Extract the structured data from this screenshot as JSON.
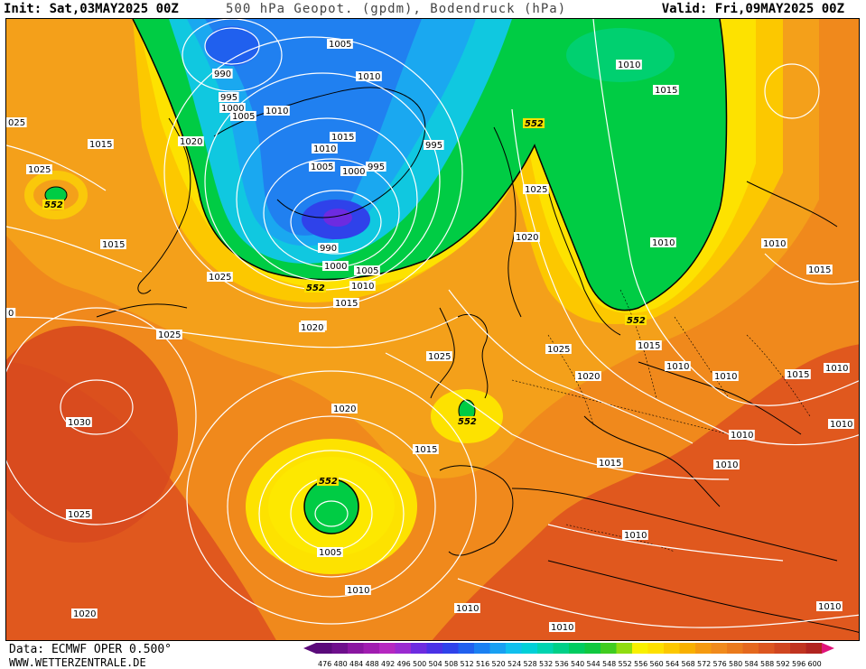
{
  "header": {
    "init": "Init: Sat,03MAY2025 00Z",
    "title": "500 hPa Geopot. (gpdm), Bodendruck (hPa)",
    "valid": "Valid: Fri,09MAY2025 00Z"
  },
  "footer": {
    "data_source": "Data: ECMWF OPER 0.500°",
    "site": "WWW.WETTERZENTRALE.DE"
  },
  "colors": {
    "background_low": "#d8451f",
    "orange": "#f08a1c",
    "yellow": "#fde500",
    "green": "#00cc44",
    "cyan": "#00c8e8",
    "blue": "#2080f0",
    "deep_blue": "#2a3fd8",
    "isobar": "#ffffff",
    "coast": "#000000"
  },
  "color_scale": {
    "labels": [
      "476",
      "480",
      "484",
      "488",
      "492",
      "496",
      "500",
      "504",
      "508",
      "512",
      "516",
      "520",
      "524",
      "528",
      "532",
      "536",
      "540",
      "544",
      "548",
      "552",
      "556",
      "560",
      "564",
      "568",
      "572",
      "576",
      "580",
      "584",
      "588",
      "592",
      "596",
      "600"
    ],
    "colors": [
      "#5a0a7a",
      "#6e0f8c",
      "#8a16a0",
      "#a01db0",
      "#b527c0",
      "#9a2ad0",
      "#6d2be0",
      "#4a31e6",
      "#2f42ea",
      "#2060ee",
      "#1a80f2",
      "#18a0f2",
      "#10c0ee",
      "#00d0d8",
      "#00d4b0",
      "#00d088",
      "#00cc60",
      "#10c840",
      "#40cc20",
      "#90dc10",
      "#f8f000",
      "#fde000",
      "#fcc800",
      "#f8b000",
      "#f59a10",
      "#f08a1c",
      "#ea7a1c",
      "#e4681e",
      "#dc5620",
      "#d04620",
      "#c03420",
      "#b02420"
    ]
  },
  "map": {
    "height_labels": [
      "552",
      "552",
      "552",
      "552",
      "552",
      "552",
      "552"
    ],
    "pressure_labels": [
      "990",
      "995",
      "1000",
      "1005",
      "1010",
      "1005",
      "1010",
      "1015",
      "1010",
      "1005",
      "1000",
      "995",
      "995",
      "990",
      "1000",
      "1005",
      "1010",
      "1015",
      "1020",
      "1025",
      "1020",
      "1015",
      "1025",
      "1020",
      "1025",
      "1025",
      "1020",
      "1025",
      "1010",
      "1015",
      "1010",
      "1010",
      "1015",
      "1015",
      "1015",
      "1010",
      "1020",
      "1010",
      "1015",
      "1015",
      "1010",
      "1010",
      "1025",
      "1030",
      "1025",
      "1020",
      "1020",
      "1015",
      "1010",
      "1005",
      "1010",
      "1010",
      "1010",
      "1010",
      "1010",
      "1010",
      "025",
      "0"
    ]
  }
}
